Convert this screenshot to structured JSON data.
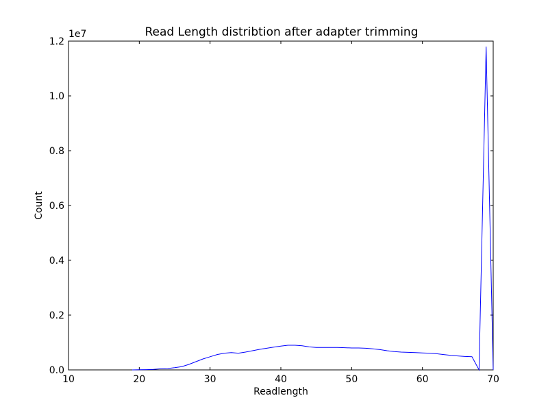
{
  "chart_data": {
    "type": "line",
    "title": "Read Length distribtion after adapter trimming",
    "xlabel": "Readlength",
    "ylabel": "Count",
    "y_offset_label": "1e7",
    "xlim": [
      10,
      70
    ],
    "ylim": [
      0,
      12000000
    ],
    "x_ticks": [
      10,
      20,
      30,
      40,
      50,
      60,
      70
    ],
    "y_ticks": [
      0,
      2000000,
      4000000,
      6000000,
      8000000,
      10000000,
      12000000
    ],
    "x_tick_labels": [
      "10",
      "20",
      "30",
      "40",
      "50",
      "60",
      "70"
    ],
    "y_tick_labels": [
      "0.0",
      "0.2",
      "0.4",
      "0.6",
      "0.8",
      "1.0",
      "1.2"
    ],
    "grid": false,
    "line_color": "#0000ff",
    "series": [
      {
        "x": [
          19,
          20,
          21,
          22,
          23,
          24,
          25,
          26,
          27,
          28,
          29,
          30,
          31,
          32,
          33,
          34,
          35,
          36,
          37,
          38,
          39,
          40,
          41,
          42,
          43,
          44,
          45,
          46,
          47,
          48,
          49,
          50,
          51,
          52,
          53,
          54,
          55,
          56,
          57,
          58,
          59,
          60,
          61,
          62,
          63,
          64,
          65,
          66,
          67,
          68,
          69,
          70
        ],
        "y": [
          0,
          5000,
          10000,
          20000,
          40000,
          50000,
          80000,
          120000,
          200000,
          300000,
          400000,
          480000,
          560000,
          610000,
          630000,
          610000,
          650000,
          700000,
          750000,
          790000,
          830000,
          870000,
          900000,
          900000,
          880000,
          840000,
          820000,
          820000,
          820000,
          820000,
          810000,
          800000,
          800000,
          790000,
          770000,
          740000,
          700000,
          670000,
          650000,
          640000,
          630000,
          620000,
          610000,
          590000,
          560000,
          530000,
          510000,
          490000,
          480000,
          0,
          11800000,
          0
        ]
      }
    ]
  }
}
